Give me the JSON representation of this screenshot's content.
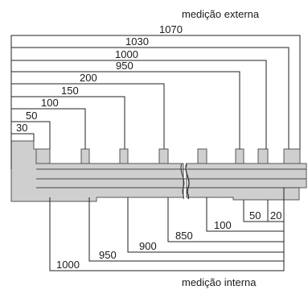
{
  "captions": {
    "external": "medição externa",
    "internal": "medição interna"
  },
  "external_dims": [
    "1070",
    "1030",
    "1000",
    "950",
    "200",
    "150",
    "100",
    "50",
    "30"
  ],
  "internal_dims": [
    "20",
    "50",
    "100",
    "850",
    "900",
    "950",
    "1000"
  ],
  "colors": {
    "ruler_fill": "#cfcfcf",
    "line": "#222222"
  }
}
